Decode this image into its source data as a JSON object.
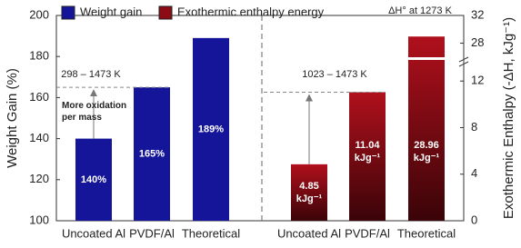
{
  "chart_data": [
    {
      "type": "bar",
      "y_axis_side": "left",
      "ylabel": "Weight Gain (%)",
      "ylim": [
        100,
        200
      ],
      "yticks": [
        100,
        120,
        140,
        160,
        180,
        200
      ],
      "categories": [
        "Uncoated Al",
        "PVDF/Al",
        "Theoretical"
      ],
      "series": [
        {
          "name": "Weight gain",
          "color": "#15159a",
          "values": [
            140,
            165,
            189
          ],
          "value_labels": [
            "140%",
            "165%",
            "189%"
          ]
        }
      ],
      "annotations": [
        "298 – 1473 K",
        "More oxidation per mass"
      ]
    },
    {
      "type": "bar",
      "y_axis_side": "right",
      "ylabel": "Exothermic Enthalpy (-ΔH, kJg⁻¹)",
      "ylim": [
        0,
        32
      ],
      "axis_break": [
        13.5,
        26.5
      ],
      "yticks": [
        0,
        4,
        8,
        12,
        28,
        32
      ],
      "categories": [
        "Uncoated Al",
        "PVDF/Al",
        "Theoretical"
      ],
      "series": [
        {
          "name": "Exothermic enthalpy energy",
          "color": "#8b0c14",
          "values": [
            4.85,
            11.04,
            28.96
          ],
          "value_labels": [
            "4.85 kJg⁻¹",
            "11.04 kJg⁻¹",
            "28.96 kJg⁻¹"
          ]
        }
      ],
      "annotations": [
        "1023 – 1473 K",
        "ΔH° at 1273 K"
      ]
    }
  ]
}
